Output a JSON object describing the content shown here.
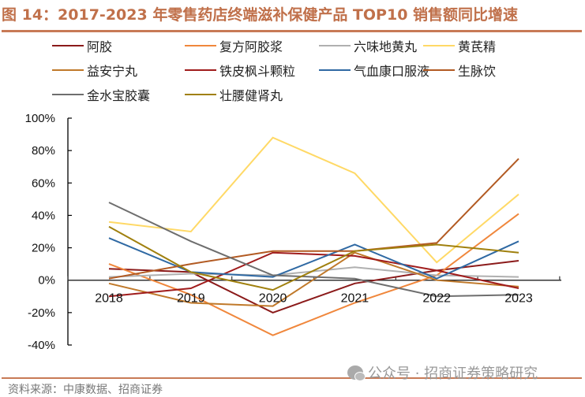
{
  "header": {
    "title": "图 14：2017-2023 年零售药店终端滋补保健产品 TOP10 销售额同比增速"
  },
  "footer": {
    "source": "资料来源：中康数据、招商证券",
    "watermark": "公众号 · 招商证券策略研究",
    "watermark_icon": "wechat-icon"
  },
  "chart_data": {
    "type": "line",
    "title": "2017-2023 年零售药店终端滋补保健产品 TOP10 销售额同比增速",
    "xlabel": "",
    "ylabel": "",
    "x": [
      "2018",
      "2019",
      "2020",
      "2021",
      "2022",
      "2023"
    ],
    "ylim": [
      -40,
      100
    ],
    "yticks": [
      -40,
      -20,
      0,
      20,
      40,
      60,
      80,
      100
    ],
    "ytick_labels": [
      "-40%",
      "-20%",
      "0%",
      "20%",
      "40%",
      "60%",
      "80%",
      "100%"
    ],
    "grid": false,
    "legend_position": "top",
    "series": [
      {
        "name": "阿胶",
        "color": "#8b1a1a",
        "values": [
          7,
          5,
          -20,
          -2,
          6,
          12
        ]
      },
      {
        "name": "复方阿胶浆",
        "color": "#f0873c",
        "values": [
          10,
          -9,
          -34,
          -14,
          3,
          41
        ]
      },
      {
        "name": "六味地黄丸",
        "color": "#b0b0b0",
        "values": [
          2,
          4,
          3,
          8,
          3,
          2
        ]
      },
      {
        "name": "黄芪精",
        "color": "#ffd966",
        "values": [
          36,
          30,
          88,
          66,
          11,
          53
        ]
      },
      {
        "name": "益安宁丸",
        "color": "#c0792a",
        "values": [
          -2,
          -14,
          -16,
          17,
          0,
          -4
        ]
      },
      {
        "name": "铁皮枫斗颗粒",
        "color": "#a01c1c",
        "values": [
          -10,
          -5,
          17,
          15,
          6,
          -5
        ]
      },
      {
        "name": "气血康口服液",
        "color": "#2f69a3",
        "values": [
          26,
          5,
          2,
          22,
          1,
          24
        ]
      },
      {
        "name": "生脉饮",
        "color": "#b25a22",
        "values": [
          1,
          10,
          18,
          18,
          23,
          75
        ]
      },
      {
        "name": "金水宝胶囊",
        "color": "#6e6e6e",
        "values": [
          48,
          24,
          3,
          1,
          -10,
          -9
        ]
      },
      {
        "name": "壮腰健肾丸",
        "color": "#a0800e",
        "values": [
          33,
          5,
          -6,
          18,
          22,
          17
        ]
      }
    ]
  }
}
